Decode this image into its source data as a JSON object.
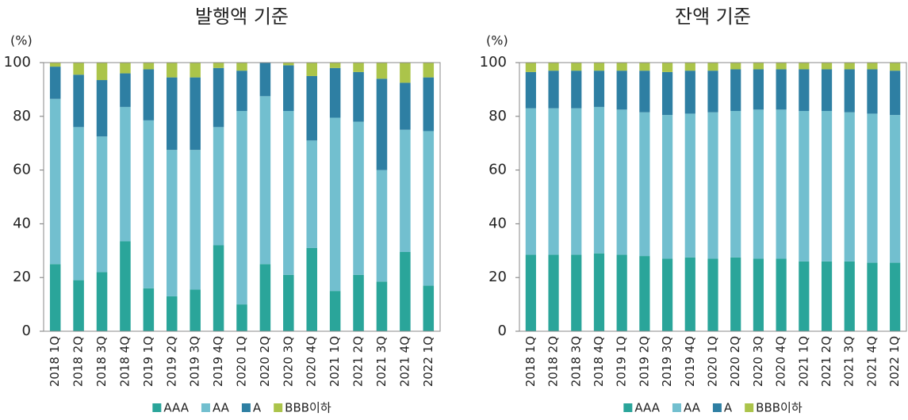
{
  "chart_data": [
    {
      "type": "bar",
      "stacked": true,
      "title": "발행액 기준",
      "y_label": "(%)",
      "categories": [
        "2018 1Q",
        "2018 2Q",
        "2018 3Q",
        "2018 4Q",
        "2019 1Q",
        "2019 2Q",
        "2019 3Q",
        "2019 4Q",
        "2020 1Q",
        "2020 2Q",
        "2020 3Q",
        "2020 4Q",
        "2021 1Q",
        "2021 2Q",
        "2021 3Q",
        "2021 4Q",
        "2022 1Q"
      ],
      "series": [
        {
          "name": "AAA",
          "color": "#2aa59a",
          "values": [
            25,
            19,
            22,
            33.5,
            16,
            13,
            15.5,
            32,
            10,
            25,
            21,
            31,
            15,
            21,
            18.5,
            29.5,
            17
          ]
        },
        {
          "name": "AA",
          "color": "#72bfcf",
          "values": [
            61.5,
            57,
            50.5,
            50,
            62.5,
            54.5,
            52,
            44,
            72,
            62.5,
            61,
            40,
            64.5,
            57,
            41.5,
            45.5,
            57.5
          ]
        },
        {
          "name": "A",
          "color": "#2e7fa3",
          "values": [
            12,
            19.5,
            21,
            12.5,
            19,
            27,
            27,
            22,
            15,
            12.5,
            17,
            24,
            18.5,
            18.5,
            34,
            17.5,
            20
          ]
        },
        {
          "name": "BBB이하",
          "color": "#abc44a",
          "values": [
            1.5,
            4.5,
            6.5,
            4,
            2.5,
            5.5,
            5.5,
            2,
            3,
            0,
            1,
            5,
            2,
            3.5,
            6,
            7.5,
            5.5
          ]
        }
      ],
      "ylim": [
        0,
        100
      ],
      "yticks": [
        0,
        20,
        40,
        60,
        80,
        100
      ],
      "legend": "bottom"
    },
    {
      "type": "bar",
      "stacked": true,
      "title": "잔액 기준",
      "y_label": "(%)",
      "categories": [
        "2018 1Q",
        "2018 2Q",
        "2018 3Q",
        "2018 4Q",
        "2019 1Q",
        "2019 2Q",
        "2019 3Q",
        "2019 4Q",
        "2020 1Q",
        "2020 2Q",
        "2020 3Q",
        "2020 4Q",
        "2021 1Q",
        "2021 2Q",
        "2021 3Q",
        "2021 4Q",
        "2022 1Q"
      ],
      "series": [
        {
          "name": "AAA",
          "color": "#2aa59a",
          "values": [
            28.5,
            28.5,
            28.5,
            29,
            28.5,
            28,
            27,
            27.5,
            27,
            27.5,
            27,
            27,
            26,
            26,
            26,
            25.5,
            25.5
          ]
        },
        {
          "name": "AA",
          "color": "#72bfcf",
          "values": [
            54.5,
            54.5,
            54.5,
            54.5,
            54,
            53.5,
            53.5,
            53.5,
            54.5,
            54.5,
            55.5,
            55.5,
            56,
            56,
            55.5,
            55.5,
            55
          ]
        },
        {
          "name": "A",
          "color": "#2e7fa3",
          "values": [
            13.5,
            14,
            14,
            13.5,
            14.5,
            15.5,
            16,
            16,
            15.5,
            15.5,
            15,
            15,
            15.5,
            15.5,
            16,
            16.5,
            16.5
          ]
        },
        {
          "name": "BBB이하",
          "color": "#abc44a",
          "values": [
            3.5,
            3,
            3,
            3,
            3,
            3,
            3.5,
            3,
            3,
            2.5,
            2.5,
            2.5,
            2.5,
            2.5,
            2.5,
            2.5,
            3
          ]
        }
      ],
      "ylim": [
        0,
        100
      ],
      "yticks": [
        0,
        20,
        40,
        60,
        80,
        100
      ],
      "legend": "bottom"
    }
  ]
}
